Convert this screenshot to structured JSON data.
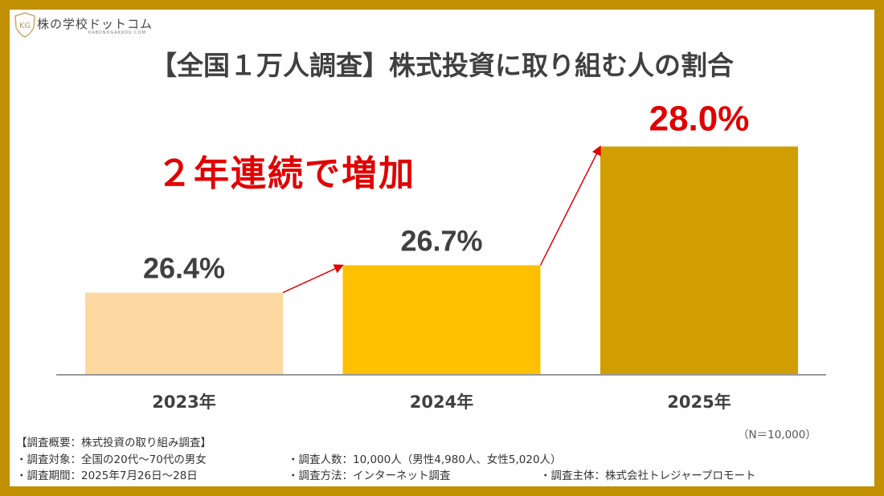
{
  "logo": {
    "name": "株の学校ドットコム",
    "sub": "KABUNOGAKKOU.COM",
    "emblem": "KG"
  },
  "title": "【全国１万人調査】株式投資に取り組む人の割合",
  "headline": "２年連続で増加",
  "chart_data": {
    "type": "bar",
    "categories": [
      "2023年",
      "2024年",
      "2025年"
    ],
    "values": [
      26.4,
      26.7,
      28.0
    ],
    "data_labels": [
      "26.4%",
      "26.7%",
      "28.0%"
    ],
    "ylim": [
      25.5,
      28.4
    ],
    "grid": false,
    "colors": [
      "#FDD8A0",
      "#FFC000",
      "#D09E00"
    ],
    "label_colors": [
      "#404040",
      "#404040",
      "#E00000"
    ],
    "arrow_color": "#E00000"
  },
  "sample_size": "（N＝10,000）",
  "notes": {
    "heading": "【調査概要：株式投資の取り組み調査】",
    "target": "・調査対象：全国の20代～70代の男女",
    "count": "・調査人数：10,000人（男性4,980人、女性5,020人）",
    "period": "・調査期間：2025年7月26日～28日",
    "method": "・調査方法：インターネット調査",
    "organizer": "・調査主体：株式会社トレジャープロモート"
  }
}
